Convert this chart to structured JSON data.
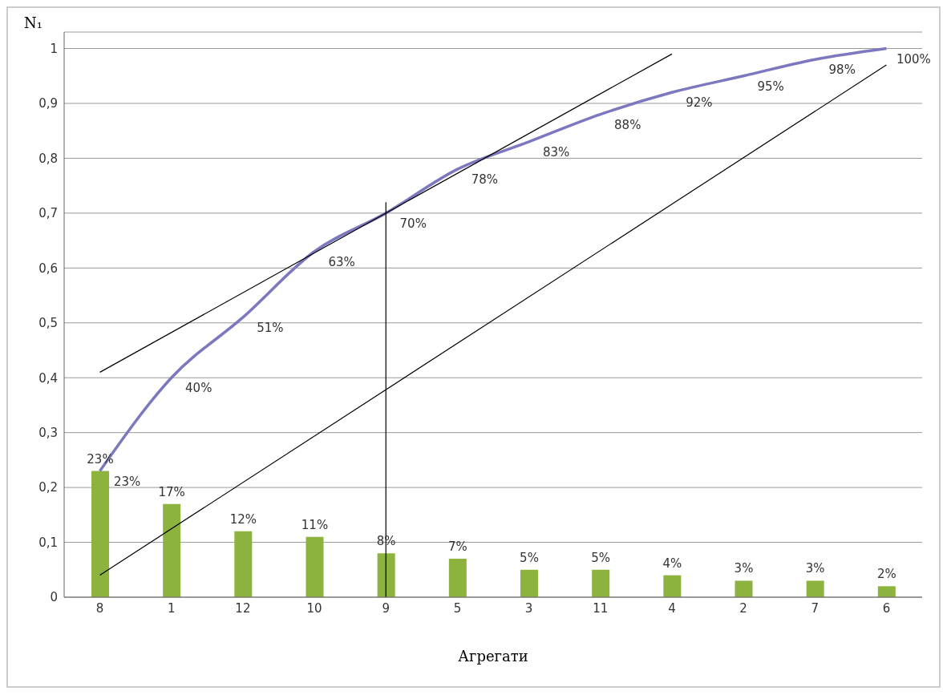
{
  "chart_data": {
    "type": "bar",
    "xlabel": "Агрегати",
    "ylabel": "N₁",
    "categories": [
      "8",
      "1",
      "12",
      "10",
      "9",
      "5",
      "3",
      "11",
      "4",
      "2",
      "7",
      "6"
    ],
    "ylim": [
      0,
      1.03
    ],
    "yticks": [
      0,
      {
        "value": 0.1,
        "label": "0,1"
      },
      {
        "value": 0.2,
        "label": "0,2"
      },
      {
        "value": 0.3,
        "label": "0,3"
      },
      {
        "value": 0.4,
        "label": "0,4"
      },
      {
        "value": 0.5,
        "label": "0,5"
      },
      {
        "value": 0.6,
        "label": "0,6"
      },
      {
        "value": 0.7,
        "label": "0,7"
      },
      {
        "value": 0.8,
        "label": "0,8"
      },
      {
        "value": 0.9,
        "label": "0,9"
      },
      1
    ],
    "grid": "y",
    "legend": false,
    "marker": "none",
    "series": [
      {
        "color": "#8db33f",
        "values": [
          0.23,
          0.17,
          0.12,
          0.11,
          0.08,
          0.07,
          0.05,
          0.05,
          0.04,
          0.03,
          0.03,
          0.02
        ],
        "value_labels": [
          "23%",
          "17%",
          "12%",
          "11%",
          "8%",
          "7%",
          "5%",
          "5%",
          "4%",
          "3%",
          "3%",
          "2%"
        ]
      },
      {
        "type": "line",
        "color": "#7b78c0",
        "values": [
          0.23,
          0.4,
          0.51,
          0.63,
          0.7,
          0.78,
          0.83,
          0.88,
          0.92,
          0.95,
          0.98,
          1.0
        ],
        "value_labels": [
          "23%",
          "40%",
          "51%",
          "63%",
          "70%",
          "78%",
          "83%",
          "88%",
          "92%",
          "95%",
          "98%",
          "100%"
        ]
      },
      {
        "type": "line",
        "color": "#000000",
        "x": [
          "8",
          "6"
        ],
        "values": [
          0.04,
          0.97
        ]
      },
      {
        "type": "line",
        "color": "#000000",
        "x": [
          "8",
          "4"
        ],
        "values": [
          0.41,
          0.99
        ]
      },
      {
        "type": "line",
        "color": "#000000",
        "x": [
          "9",
          "9"
        ],
        "values": [
          0,
          0.72
        ]
      }
    ]
  }
}
